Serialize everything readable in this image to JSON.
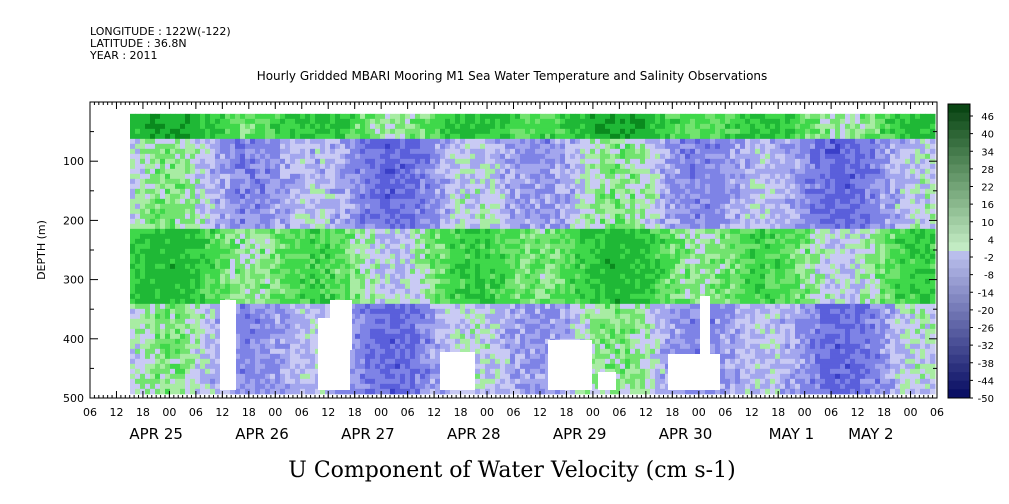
{
  "header": {
    "longitude": "LONGITUDE : 122W(-122)",
    "latitude": "LATITUDE : 36.8N",
    "year": "YEAR : 2011"
  },
  "chart_data": {
    "type": "heatmap",
    "title": "Hourly Gridded MBARI Mooring M1 Sea Water Temperature and Salinity Observations",
    "xlabel": "U Component of Water Velocity (cm s-1)",
    "ylabel": "DEPTH (m)",
    "y_axis": {
      "reversed": true,
      "ylim": [
        0,
        500
      ],
      "ticks": [
        100,
        200,
        300,
        400,
        500
      ]
    },
    "x_axis": {
      "hour_ticks": [
        "06",
        "12",
        "18",
        "00",
        "06",
        "12",
        "18",
        "00",
        "06",
        "12",
        "18",
        "00",
        "06",
        "12",
        "18",
        "00",
        "06",
        "12",
        "18",
        "00",
        "06",
        "12",
        "18",
        "00",
        "06",
        "12",
        "18",
        "00",
        "06",
        "12",
        "18",
        "00",
        "06"
      ],
      "day_labels": [
        "APR 25",
        "APR 26",
        "APR 27",
        "APR 28",
        "APR 29",
        "APR 30",
        "MAY 1",
        "MAY 2"
      ]
    },
    "colorbar": {
      "labels": [
        "46",
        "40",
        "34",
        "28",
        "22",
        "16",
        "10",
        "4",
        "-2",
        "-8",
        "-14",
        "-20",
        "-26",
        "-32",
        "-38",
        "-44",
        "-50"
      ],
      "min": -50,
      "max": 52
    },
    "data_extent": {
      "depth_top": 20,
      "depth_bottom": 490
    },
    "description_bands": [
      {
        "depth_range": [
          20,
          60
        ],
        "dominant": "positive (10 to 22)"
      },
      {
        "depth_range": [
          60,
          220
        ],
        "dominant": "negative (-2 to -20)"
      },
      {
        "depth_range": [
          220,
          340
        ],
        "dominant": "positive (4 to 22)"
      },
      {
        "depth_range": [
          340,
          490
        ],
        "dominant": "mixed, mostly negative"
      }
    ]
  },
  "colors": {
    "positive_strong": "#0a8a1e",
    "positive_mid": "#3fd84a",
    "positive_light": "#a8eca3",
    "negative_light": "#b6b8f0",
    "negative_mid": "#7e83e6",
    "negative_strong": "#1b1fa8"
  }
}
